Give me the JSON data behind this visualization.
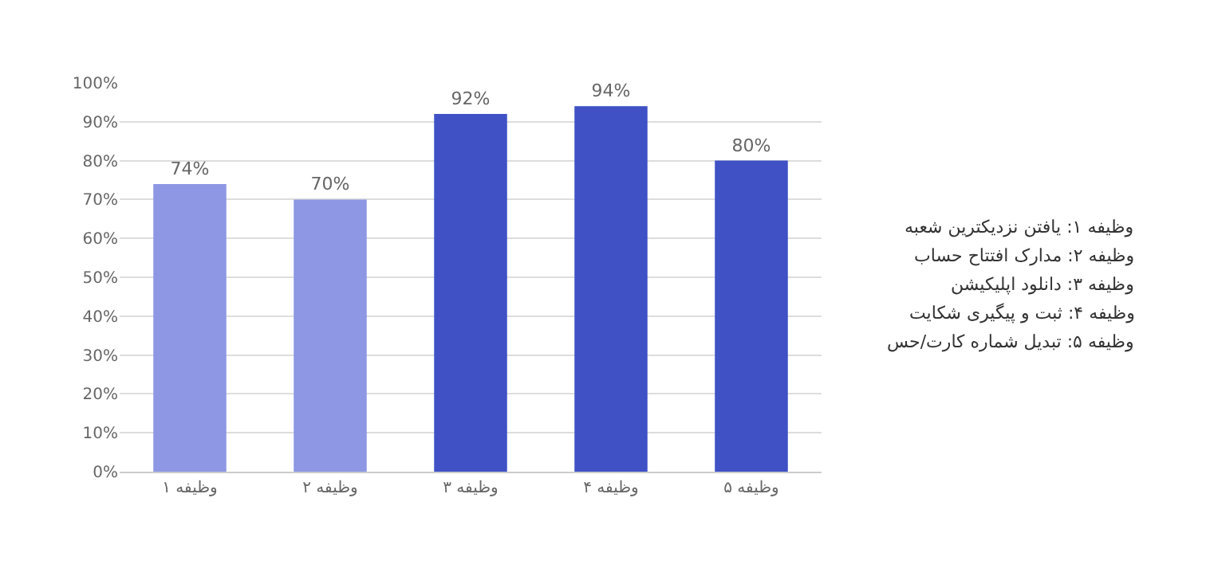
{
  "chart_data": {
    "type": "bar",
    "categories": [
      "وظیفه ۱",
      "وظیفه ۲",
      "وظیفه ۳",
      "وظیفه ۴",
      "وظیفه ۵"
    ],
    "values": [
      74,
      70,
      92,
      94,
      80
    ],
    "colors": [
      "#8d97e3",
      "#8d97e3",
      "#3f51c5",
      "#3f51c5",
      "#3f51c5"
    ],
    "value_labels": [
      "74%",
      "70%",
      "92%",
      "94%",
      "80%"
    ],
    "ylim": [
      0,
      100
    ],
    "yticks": [
      {
        "value": 0,
        "label": "0%"
      },
      {
        "value": 10,
        "label": "10%"
      },
      {
        "value": 20,
        "label": "20%"
      },
      {
        "value": 30,
        "label": "30%"
      },
      {
        "value": 40,
        "label": "40%"
      },
      {
        "value": 50,
        "label": "50%"
      },
      {
        "value": 60,
        "label": "60%"
      },
      {
        "value": 70,
        "label": "70%"
      },
      {
        "value": 80,
        "label": "80%"
      },
      {
        "value": 90,
        "label": "90%"
      },
      {
        "value": 100,
        "label": "100%"
      }
    ],
    "grid": "y",
    "annotations": [
      "وظیفه ۱: یافتن نزدیکترین شعبه",
      "وظیفه ۲: مدارک افتتاح حساب",
      "وظیفه ۳: دانلود اپلیکیشن",
      "وظیفه ۴: ثبت و پیگیری شکایت",
      "وظیفه ۵: تبدیل شماره کارت/حس"
    ]
  }
}
